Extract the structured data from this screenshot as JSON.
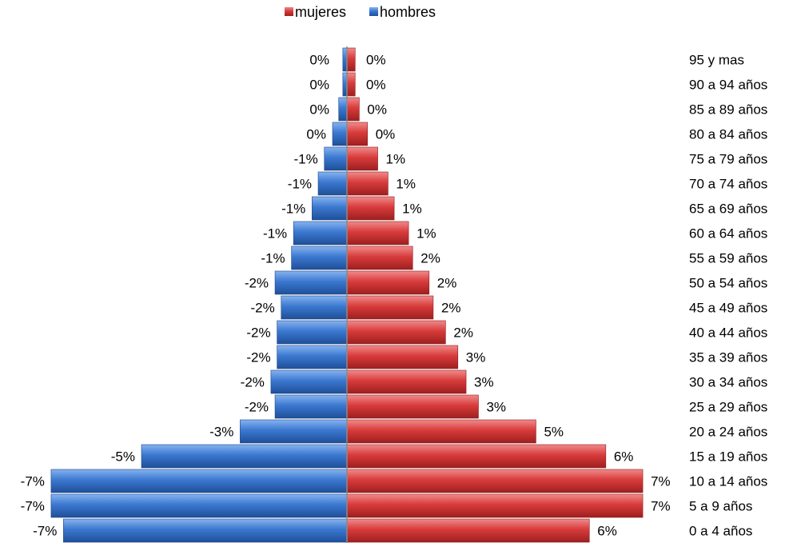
{
  "chart_data": {
    "type": "bar",
    "orientation": "horizontal",
    "title": "",
    "legend": {
      "placement": "top-center",
      "entries": [
        {
          "name": "mujeres",
          "color": "#d83b3b"
        },
        {
          "name": "hombres",
          "color": "#3b78d0"
        }
      ]
    },
    "categories": [
      "95 y mas",
      "90 a 94 años",
      "85 a 89 años",
      "80 a 84 años",
      "75 a 79 años",
      "70 a 74 años",
      "65 a 69 años",
      "60 a 64 años",
      "55 a 59 años",
      "50 a 54 años",
      "45 a 49 años",
      "40 a 44 años",
      "35 a 39 años",
      "30 a 34 años",
      "25 a 29 años",
      "20 a 24 años",
      "15 a 19 años",
      "10 a 14 años",
      "5 a 9 años",
      "0 a 4 años"
    ],
    "series": [
      {
        "name": "mujeres",
        "color": "#d83b3b",
        "values": [
          0.002,
          0.002,
          0.003,
          0.005,
          0.0075,
          0.01,
          0.0115,
          0.015,
          0.016,
          0.02,
          0.021,
          0.024,
          0.027,
          0.029,
          0.032,
          0.046,
          0.063,
          0.072,
          0.072,
          0.059
        ],
        "labels": [
          "0%",
          "0%",
          "0%",
          "0%",
          "1%",
          "1%",
          "1%",
          "1%",
          "2%",
          "2%",
          "2%",
          "2%",
          "3%",
          "3%",
          "3%",
          "5%",
          "6%",
          "7%",
          "7%",
          "6%"
        ]
      },
      {
        "name": "hombres",
        "color": "#3b78d0",
        "values": [
          -0.001,
          -0.001,
          -0.002,
          -0.0035,
          -0.0055,
          -0.007,
          -0.0085,
          -0.013,
          -0.0135,
          -0.0175,
          -0.016,
          -0.017,
          -0.017,
          -0.0185,
          -0.0175,
          -0.026,
          -0.05,
          -0.072,
          -0.072,
          -0.069
        ],
        "labels": [
          "0%",
          "0%",
          "0%",
          "0%",
          "-1%",
          "-1%",
          "-1%",
          "-1%",
          "-1%",
          "-2%",
          "-2%",
          "-2%",
          "-2%",
          "-2%",
          "-2%",
          "-3%",
          "-5%",
          "-7%",
          "-7%",
          "-7%"
        ]
      }
    ],
    "xlim": [
      -0.075,
      0.075
    ],
    "grid": false
  }
}
